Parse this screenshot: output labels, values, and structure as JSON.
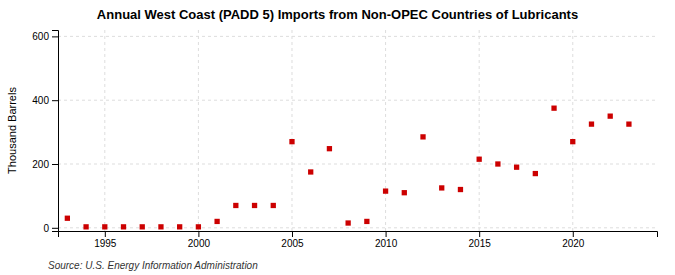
{
  "chart_data": {
    "type": "scatter",
    "title": "Annual West Coast (PADD 5) Imports from Non-OPEC Countries of Lubricants",
    "ylabel": "Thousand Barrels",
    "annotations": [
      "Source: U.S. Energy Information Administration"
    ],
    "x": [
      1993,
      1994,
      1995,
      1996,
      1997,
      1998,
      1999,
      2000,
      2001,
      2002,
      2003,
      2004,
      2005,
      2006,
      2007,
      2008,
      2009,
      2010,
      2011,
      2012,
      2013,
      2014,
      2015,
      2016,
      2017,
      2018,
      2019,
      2020,
      2021,
      2022,
      2023
    ],
    "values": [
      30,
      3,
      3,
      3,
      3,
      3,
      3,
      3,
      20,
      70,
      70,
      70,
      270,
      175,
      248,
      15,
      20,
      115,
      110,
      285,
      125,
      120,
      215,
      200,
      190,
      170,
      375,
      270,
      325,
      350,
      325
    ],
    "color": "#cc0000",
    "marker": "square",
    "xlim": [
      1992.5,
      2024.5
    ],
    "ylim": [
      -10,
      620
    ],
    "xticks": [
      1995,
      2000,
      2005,
      2010,
      2015,
      2020
    ],
    "yticks": [
      0,
      200,
      400,
      600
    ],
    "grid": true
  }
}
